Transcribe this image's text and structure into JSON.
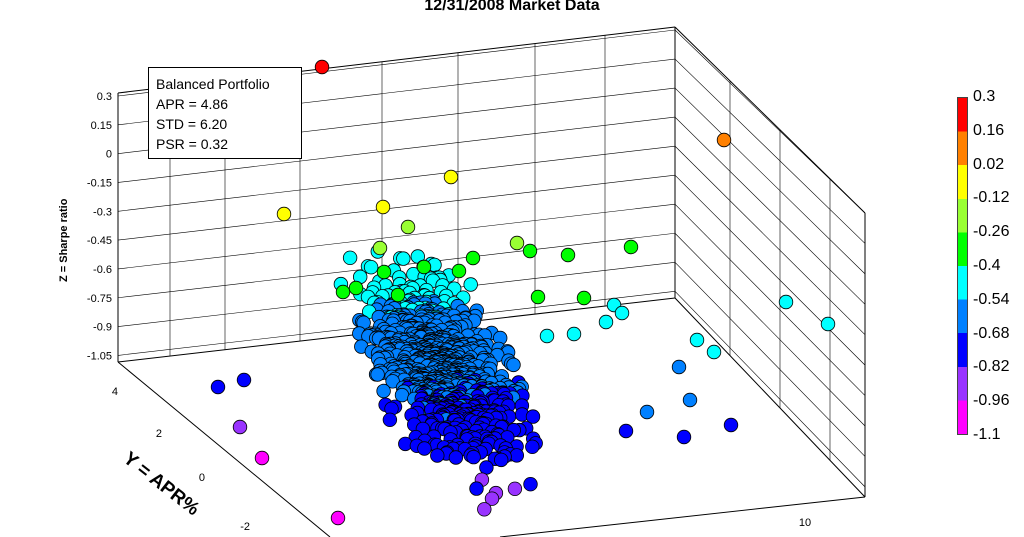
{
  "title": "12/31/2008 Market Data",
  "info_box": {
    "heading": "Balanced Portfolio",
    "apr": "APR = 4.86",
    "std": "STD = 6.20",
    "psr": "PSR = 0.32"
  },
  "chart_data": {
    "type": "scatter",
    "title": "12/31/2008 Market Data",
    "zlabel": "Z = Sharpe ratio",
    "ylabel": "Y = APR%",
    "xlabel": "",
    "z_ticks": [
      "0.3",
      "0.15",
      "0",
      "-0.15",
      "-0.3",
      "-0.45",
      "-0.6",
      "-0.75",
      "-0.9",
      "-1.05"
    ],
    "y_ticks": [
      "4",
      "2",
      "0",
      "-2"
    ],
    "x_ticks": [
      "10"
    ],
    "zlim": [
      -1.1,
      0.3
    ],
    "colormap": [
      "#ff00ff",
      "#9933ff",
      "#0000ff",
      "#0080ff",
      "#00ffff",
      "#00ff00",
      "#99ff33",
      "#ffff00",
      "#ff8000",
      "#ff0000"
    ],
    "colorbar_ticks": [
      "0.3",
      "0.16",
      "0.02",
      "-0.12",
      "-0.26",
      "-0.4",
      "-0.54",
      "-0.68",
      "-0.82",
      "-0.96",
      "-1.1"
    ],
    "highlighted_point": {
      "name": "Balanced Portfolio",
      "x": 6.2,
      "y": 4.86,
      "z": 0.32
    },
    "points_estimated": [
      {
        "x": 6.2,
        "y": 4.86,
        "z": 0.32
      },
      {
        "x": 10.5,
        "y": 4.2,
        "z": 0.0
      },
      {
        "x": 5.2,
        "y": 3.8,
        "z": -0.05
      },
      {
        "x": 3.2,
        "y": 3.5,
        "z": -0.1
      },
      {
        "x": 4.8,
        "y": 3.0,
        "z": -0.1
      },
      {
        "x": 5.2,
        "y": 2.8,
        "z": -0.2
      },
      {
        "x": 7.5,
        "y": 3.2,
        "z": -0.3
      },
      {
        "x": 8.0,
        "y": 3.0,
        "z": -0.35
      },
      {
        "x": 6.5,
        "y": 2.0,
        "z": -0.4
      },
      {
        "x": 5.5,
        "y": 1.5,
        "z": -0.45
      },
      {
        "x": 12.0,
        "y": 1.0,
        "z": -0.5
      },
      {
        "x": 13.0,
        "y": 0.0,
        "z": -0.5
      },
      {
        "x": 6.0,
        "y": 0.5,
        "z": -0.6
      },
      {
        "x": 7.0,
        "y": 0.0,
        "z": -0.65
      },
      {
        "x": 9.0,
        "y": -0.5,
        "z": -0.7
      },
      {
        "x": 5.0,
        "y": 0.0,
        "z": -0.75
      },
      {
        "x": 6.0,
        "y": -1.0,
        "z": -0.85
      },
      {
        "x": 7.0,
        "y": -1.5,
        "z": -0.9
      },
      {
        "x": 5.5,
        "y": -2.0,
        "z": -1.0
      },
      {
        "x": 6.5,
        "y": -2.5,
        "z": -1.1
      }
    ]
  }
}
